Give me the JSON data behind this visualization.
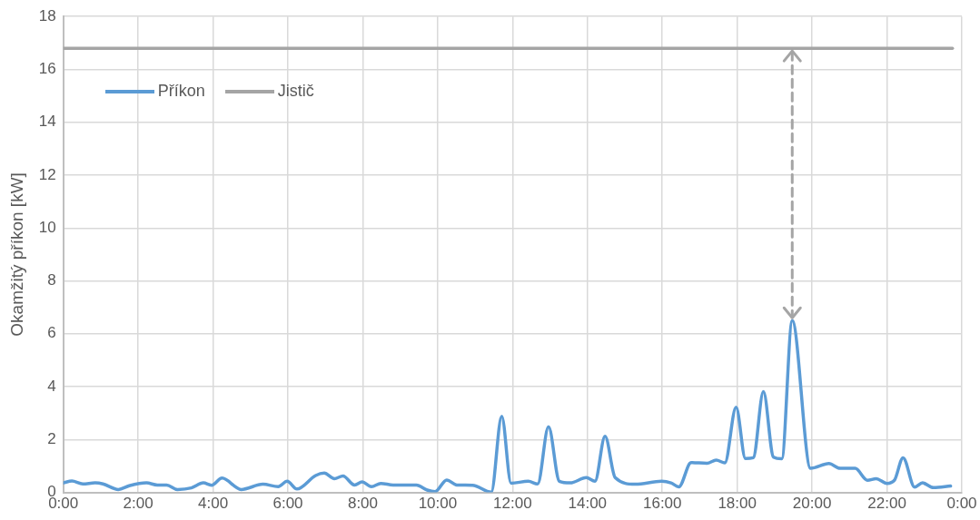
{
  "chart_data": {
    "type": "line",
    "ylabel": "Okamžitý příkon [kW]",
    "xlim": [
      0,
      24
    ],
    "xticks": [
      {
        "value": 0,
        "label": "0:00"
      },
      {
        "value": 2,
        "label": "2:00"
      },
      {
        "value": 4,
        "label": "4:00"
      },
      {
        "value": 6,
        "label": "6:00"
      },
      {
        "value": 8,
        "label": "8:00"
      },
      {
        "value": 10,
        "label": "10:00"
      },
      {
        "value": 12,
        "label": "12:00"
      },
      {
        "value": 14,
        "label": "14:00"
      },
      {
        "value": 16,
        "label": "16:00"
      },
      {
        "value": 18,
        "label": "18:00"
      },
      {
        "value": 20,
        "label": "20:00"
      },
      {
        "value": 22,
        "label": "22:00"
      },
      {
        "value": 24,
        "label": "0:00"
      }
    ],
    "ylim": [
      0,
      18
    ],
    "yticks": [
      0,
      2,
      4,
      6,
      8,
      10,
      12,
      14,
      16,
      18
    ],
    "grid": true,
    "legend": "top left",
    "marker": "none",
    "line_style": "solid",
    "series": [
      {
        "name": "Příkon",
        "color": "#5b9bd5",
        "x": [
          0,
          0.23,
          0.52,
          0.85,
          1.06,
          1.47,
          1.76,
          2.22,
          2.51,
          2.76,
          3.05,
          3.42,
          3.74,
          3.96,
          4.24,
          4.75,
          5.33,
          5.74,
          5.98,
          6.24,
          6.74,
          6.97,
          7.24,
          7.47,
          7.78,
          7.98,
          8.23,
          8.48,
          8.81,
          9.43,
          9.72,
          9.93,
          10.24,
          10.51,
          10.93,
          11.43,
          11.71,
          11.96,
          12.42,
          12.67,
          12.96,
          13.25,
          13.54,
          13.97,
          14.2,
          14.47,
          14.74,
          15.28,
          15.98,
          16.23,
          16.44,
          16.77,
          17.19,
          17.44,
          17.67,
          17.97,
          18.22,
          18.43,
          18.7,
          18.97,
          19.19,
          19.47,
          19.96,
          20.45,
          20.75,
          21.15,
          21.48,
          21.71,
          22,
          22.2,
          22.43,
          22.74,
          22.95,
          23.24,
          23.7
        ],
        "values": [
          0.36,
          0.43,
          0.32,
          0.36,
          0.32,
          0.11,
          0.25,
          0.36,
          0.28,
          0.28,
          0.11,
          0.17,
          0.36,
          0.27,
          0.54,
          0.11,
          0.31,
          0.22,
          0.42,
          0.13,
          0.64,
          0.73,
          0.52,
          0.62,
          0.28,
          0.4,
          0.22,
          0.34,
          0.28,
          0.28,
          0.09,
          0.03,
          0.47,
          0.28,
          0.27,
          0.01,
          2.88,
          0.35,
          0.42,
          0.32,
          2.48,
          0.42,
          0.36,
          0.56,
          0.42,
          2.12,
          0.56,
          0.31,
          0.42,
          0.36,
          0.21,
          1.13,
          1.1,
          1.22,
          1.12,
          3.22,
          1.28,
          1.31,
          3.81,
          1.33,
          1.27,
          6.5,
          0.91,
          1.09,
          0.91,
          0.91,
          0.46,
          0.52,
          0.34,
          0.46,
          1.31,
          0.2,
          0.36,
          0.18,
          0.24
        ]
      },
      {
        "name": "Jistič",
        "color": "#a5a5a5",
        "x": [
          0,
          23.75
        ],
        "values": [
          16.8,
          16.8
        ]
      }
    ]
  }
}
